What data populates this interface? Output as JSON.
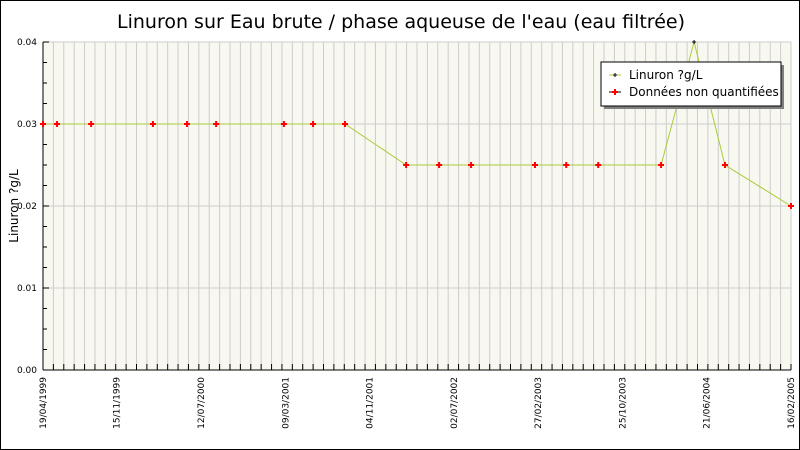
{
  "chart_data": {
    "type": "line",
    "title": "Linuron sur Eau brute / phase aqueuse de l'eau (eau filtrée)",
    "xlabel": "",
    "ylabel": "Linuron ?g/L",
    "ylim": [
      0,
      0.04
    ],
    "xlim": [
      "1999-04-19",
      "2005-02-16"
    ],
    "yticks": [
      "0.00",
      "0.01",
      "0.02",
      "0.03",
      "0.04"
    ],
    "xticks": [
      {
        "date": "1999-04-19",
        "label": "19/04/1999"
      },
      {
        "date": "1999-11-15",
        "label": "15/11/1999"
      },
      {
        "date": "2000-07-12",
        "label": "12/07/2000"
      },
      {
        "date": "2001-03-09",
        "label": "09/03/2001"
      },
      {
        "date": "2001-11-04",
        "label": "04/11/2001"
      },
      {
        "date": "2002-07-02",
        "label": "02/07/2002"
      },
      {
        "date": "2003-02-27",
        "label": "27/02/2003"
      },
      {
        "date": "2003-10-25",
        "label": "25/10/2003"
      },
      {
        "date": "2004-06-21",
        "label": "21/06/2004"
      },
      {
        "date": "2005-02-16",
        "label": "16/02/2005"
      }
    ],
    "grid": true,
    "legend_position": "top-right",
    "colors": {
      "line": "#a8cc3c",
      "quantified": "#000000",
      "non_quantified": "#ff0000",
      "plot_bg": "#f8f8f0",
      "grid": "#cccccc"
    },
    "legend": [
      "Linuron ?g/L",
      "Données non quantifiées"
    ],
    "series": [
      {
        "name": "Linuron ?g/L",
        "points": [
          {
            "x": "1999-04-19",
            "y": 0.03,
            "quantified": false
          },
          {
            "x": "1999-05-29",
            "y": 0.03,
            "quantified": false
          },
          {
            "x": "1999-09-03",
            "y": 0.03,
            "quantified": false
          },
          {
            "x": "2000-02-26",
            "y": 0.03,
            "quantified": false
          },
          {
            "x": "2000-06-02",
            "y": 0.03,
            "quantified": false
          },
          {
            "x": "2000-08-24",
            "y": 0.03,
            "quantified": false
          },
          {
            "x": "2001-03-05",
            "y": 0.03,
            "quantified": false
          },
          {
            "x": "2001-05-27",
            "y": 0.03,
            "quantified": false
          },
          {
            "x": "2001-08-26",
            "y": 0.03,
            "quantified": false
          },
          {
            "x": "2002-02-16",
            "y": 0.025,
            "quantified": false
          },
          {
            "x": "2002-05-21",
            "y": 0.025,
            "quantified": false
          },
          {
            "x": "2002-08-20",
            "y": 0.025,
            "quantified": false
          },
          {
            "x": "2003-02-18",
            "y": 0.025,
            "quantified": false
          },
          {
            "x": "2003-05-18",
            "y": 0.025,
            "quantified": false
          },
          {
            "x": "2003-08-17",
            "y": 0.025,
            "quantified": false
          },
          {
            "x": "2004-02-12",
            "y": 0.025,
            "quantified": false
          },
          {
            "x": "2004-05-16",
            "y": 0.04,
            "quantified": true
          },
          {
            "x": "2004-08-12",
            "y": 0.025,
            "quantified": false
          },
          {
            "x": "2005-02-16",
            "y": 0.02,
            "quantified": false
          }
        ]
      }
    ]
  }
}
